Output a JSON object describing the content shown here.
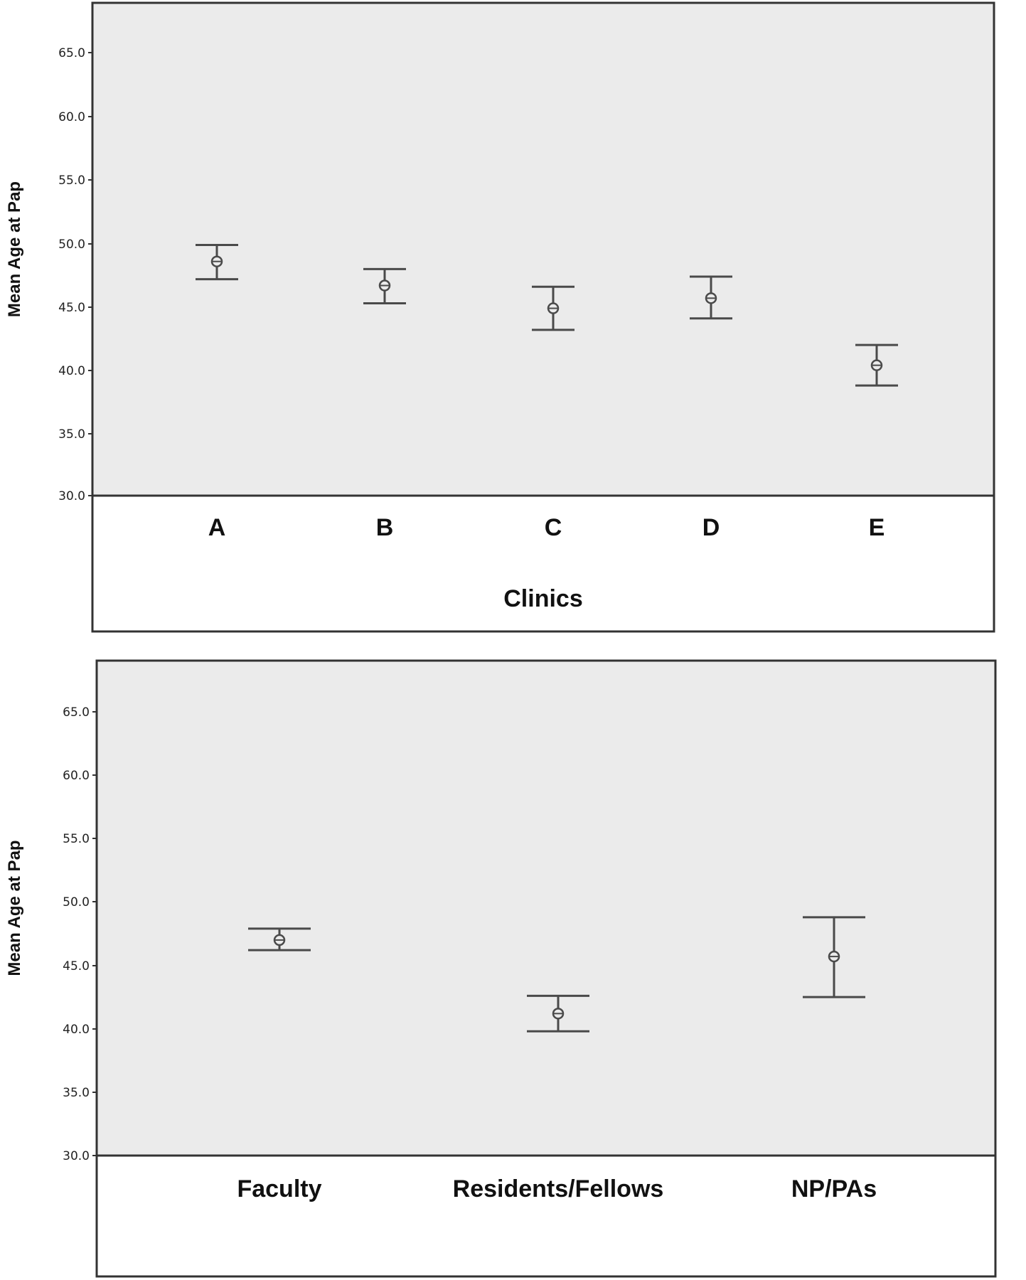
{
  "colors": {
    "plot_background": "#ebebeb",
    "frame": "#333333",
    "error_bar": "#4a4a4a",
    "page_background": "#ffffff"
  },
  "chart_data": [
    {
      "type": "errorbar",
      "title": "",
      "xlabel": "Clinics",
      "ylabel": "Mean Age at Pap",
      "ylim": [
        30.0,
        68.0
      ],
      "yticks": [
        "30.0",
        "35.0",
        "40.0",
        "45.0",
        "50.0",
        "55.0",
        "60.0",
        "65.0"
      ],
      "categories": [
        "A",
        "B",
        "C",
        "D",
        "E"
      ],
      "means": [
        48.5,
        46.6,
        44.8,
        45.6,
        40.3
      ],
      "lower": [
        47.1,
        45.2,
        43.1,
        44.0,
        38.7
      ],
      "upper": [
        49.8,
        47.9,
        46.5,
        47.3,
        41.9
      ],
      "grid": false,
      "legend": "none"
    },
    {
      "type": "errorbar",
      "title": "",
      "xlabel": "",
      "ylabel": "Mean Age at Pap",
      "ylim": [
        30.0,
        68.0
      ],
      "yticks": [
        "30.0",
        "35.0",
        "40.0",
        "45.0",
        "50.0",
        "55.0",
        "60.0",
        "65.0"
      ],
      "categories": [
        "Faculty",
        "Residents/Fellows",
        "NP/PAs"
      ],
      "means": [
        47.0,
        41.2,
        45.7
      ],
      "lower": [
        46.2,
        39.8,
        42.5
      ],
      "upper": [
        47.9,
        42.6,
        48.8
      ],
      "grid": false,
      "legend": "none"
    }
  ]
}
